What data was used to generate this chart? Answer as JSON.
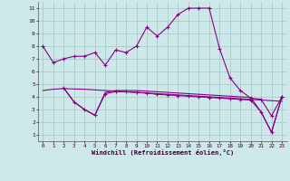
{
  "xlabel": "Windchill (Refroidissement éolien,°C)",
  "bg_color": "#cde8e8",
  "grid_color": "#aacccc",
  "line_color": "#880088",
  "xlim": [
    -0.5,
    23.5
  ],
  "ylim": [
    0.5,
    11.5
  ],
  "xticks": [
    0,
    1,
    2,
    3,
    4,
    5,
    6,
    7,
    8,
    9,
    10,
    11,
    12,
    13,
    14,
    15,
    16,
    17,
    18,
    19,
    20,
    21,
    22,
    23
  ],
  "yticks": [
    1,
    2,
    3,
    4,
    5,
    6,
    7,
    8,
    9,
    10,
    11
  ],
  "line1_x": [
    0,
    1,
    2,
    3,
    4,
    5,
    6,
    7,
    8,
    9,
    10,
    11,
    12,
    13,
    14,
    15,
    16,
    17,
    18,
    19,
    20,
    21,
    22,
    23
  ],
  "line1_y": [
    8.0,
    6.7,
    7.0,
    7.2,
    7.2,
    7.5,
    6.5,
    7.7,
    7.5,
    8.0,
    9.5,
    8.8,
    9.5,
    10.5,
    11.0,
    11.0,
    11.0,
    7.8,
    5.5,
    4.5,
    3.9,
    3.8,
    2.5,
    4.0
  ],
  "line2_x": [
    2,
    3,
    4,
    5,
    6,
    7,
    8,
    9,
    10,
    11,
    12,
    13,
    14,
    15,
    16,
    17,
    18,
    19,
    20,
    21,
    22,
    23
  ],
  "line2_y": [
    4.7,
    3.6,
    3.0,
    2.55,
    4.25,
    4.4,
    4.4,
    4.35,
    4.3,
    4.2,
    4.15,
    4.1,
    4.05,
    4.0,
    3.95,
    3.9,
    3.85,
    3.8,
    3.75,
    2.8,
    1.2,
    4.0
  ],
  "line3_x": [
    2,
    3,
    4,
    5,
    6,
    7,
    8,
    9,
    10,
    11,
    12,
    13,
    14,
    15,
    16,
    17,
    18,
    19,
    20,
    21,
    22,
    23
  ],
  "line3_y": [
    4.7,
    3.6,
    3.0,
    2.55,
    4.35,
    4.5,
    4.5,
    4.5,
    4.45,
    4.4,
    4.35,
    4.3,
    4.25,
    4.2,
    4.15,
    4.1,
    4.05,
    4.0,
    3.95,
    2.8,
    1.2,
    4.0
  ],
  "line4_x": [
    0,
    1,
    2,
    3,
    4,
    5,
    6,
    7,
    8,
    9,
    10,
    11,
    12,
    13,
    14,
    15,
    16,
    17,
    18,
    19,
    20,
    21,
    22,
    23
  ],
  "line4_y": [
    4.5,
    4.6,
    4.65,
    4.62,
    4.6,
    4.55,
    4.5,
    4.45,
    4.4,
    4.35,
    4.3,
    4.25,
    4.2,
    4.15,
    4.1,
    4.05,
    4.0,
    3.95,
    3.9,
    3.85,
    3.8,
    3.75,
    3.7,
    3.65
  ]
}
